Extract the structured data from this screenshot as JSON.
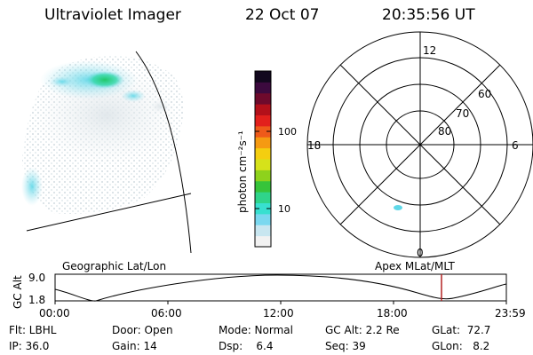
{
  "header": {
    "title": "Ultraviolet Imager",
    "date": "22 Oct 07",
    "time": "20:35:56 UT"
  },
  "colorbar": {
    "label": "photon cm⁻²s⁻¹",
    "ticks": [
      "100",
      "10"
    ],
    "scale": "log",
    "colors": [
      "#f2f2f2",
      "#c8e6f0",
      "#7ad8ef",
      "#38e0d0",
      "#2fd48a",
      "#36c43a",
      "#8ed21c",
      "#d6e21a",
      "#f4ce10",
      "#f59a12",
      "#ee5a1a",
      "#e2201c",
      "#b3101a",
      "#6e0a2c",
      "#3c0a3e",
      "#12081e"
    ]
  },
  "polar_plot": {
    "mlt_labels": {
      "top": "12",
      "bottom": "0",
      "left": "18",
      "right": "6"
    },
    "lat_labels": [
      "60",
      "70",
      "80"
    ]
  },
  "timeline": {
    "left_label": "Geographic Lat/Lon",
    "right_label": "Apex MLat/MLT",
    "y_axis_label": "GC Alt",
    "y_ticks": [
      "9.0",
      "1.8"
    ],
    "x_ticks": [
      "00:00",
      "06:00",
      "12:00",
      "18:00",
      "23:59"
    ],
    "marker_color": "#b22222"
  },
  "info": {
    "flt": "Flt: LBHL",
    "ip": "IP: 36.0",
    "door": "Door: Open",
    "gain": "Gain: 14",
    "mode": "Mode: Normal",
    "dsp": "Dsp:    6.4",
    "gc_alt": "GC Alt: 2.2 Re",
    "seq": "Seq: 39",
    "glat": "GLat:  72.7",
    "glon": "GLon:   8.2"
  }
}
